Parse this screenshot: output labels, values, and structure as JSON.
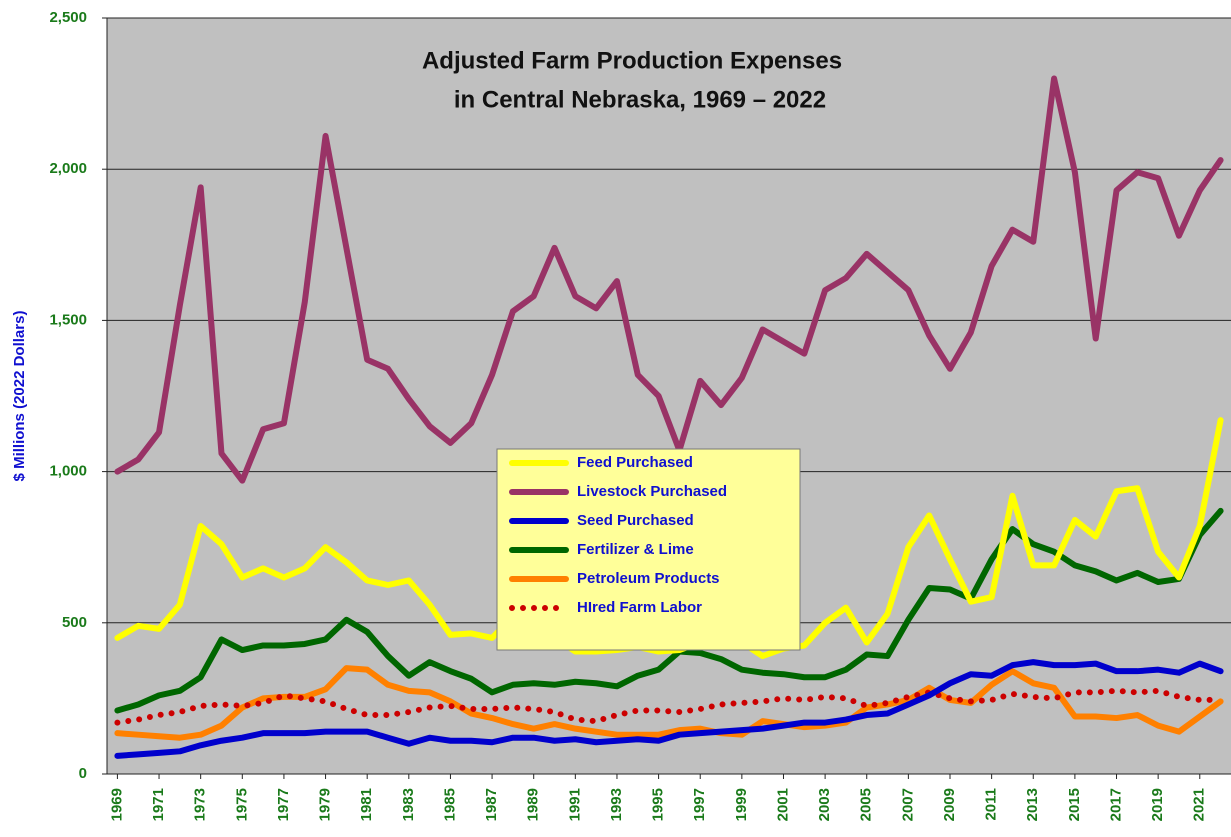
{
  "chart_data": {
    "type": "line",
    "title": [
      "Adjusted Farm Production Expenses",
      "in Central Nebraska, 1969 – 2022"
    ],
    "y_label": "$ Millions (2022 Dollars)",
    "x": [
      1969,
      1970,
      1971,
      1972,
      1973,
      1974,
      1975,
      1976,
      1977,
      1978,
      1979,
      1980,
      1981,
      1982,
      1983,
      1984,
      1985,
      1986,
      1987,
      1988,
      1989,
      1990,
      1991,
      1992,
      1993,
      1994,
      1995,
      1996,
      1997,
      1998,
      1999,
      2000,
      2001,
      2002,
      2003,
      2004,
      2005,
      2006,
      2007,
      2008,
      2009,
      2010,
      2011,
      2012,
      2013,
      2014,
      2015,
      2016,
      2017,
      2018,
      2019,
      2020,
      2021,
      2022
    ],
    "xlim": [
      1968.5,
      2022.5
    ],
    "xticks": [
      1969,
      1971,
      1973,
      1975,
      1977,
      1979,
      1981,
      1983,
      1985,
      1987,
      1989,
      1991,
      1993,
      1995,
      1997,
      1999,
      2001,
      2003,
      2005,
      2007,
      2009,
      2011,
      2013,
      2015,
      2017,
      2019,
      2021
    ],
    "ylim": [
      0,
      2500
    ],
    "yticks": [
      0,
      500,
      {
        "value": 1000,
        "label": "1,000"
      },
      {
        "value": 1500,
        "label": "1,500"
      },
      {
        "value": 2000,
        "label": "2,000"
      },
      {
        "value": 2500,
        "label": "2,500"
      }
    ],
    "grid": true,
    "series": [
      {
        "name": "Feed Purchased",
        "color": "#ffff00",
        "style": "solid",
        "values": [
          450,
          490,
          480,
          560,
          820,
          760,
          650,
          680,
          650,
          680,
          750,
          700,
          640,
          625,
          640,
          560,
          460,
          465,
          450,
          520,
          490,
          450,
          405,
          405,
          410,
          420,
          405,
          410,
          435,
          435,
          435,
          390,
          415,
          425,
          500,
          550,
          435,
          530,
          750,
          855,
          710,
          570,
          585,
          920,
          690,
          690,
          840,
          785,
          935,
          945,
          735,
          650,
          820,
          1170
        ]
      },
      {
        "name": "Livestock Purchased",
        "color": "#993366",
        "style": "solid",
        "values": [
          1000,
          1040,
          1130,
          1550,
          1940,
          1060,
          970,
          1140,
          1160,
          1560,
          2110,
          1740,
          1370,
          1340,
          1240,
          1150,
          1095,
          1160,
          1320,
          1530,
          1580,
          1740,
          1580,
          1540,
          1630,
          1320,
          1250,
          1070,
          1300,
          1220,
          1310,
          1470,
          1430,
          1390,
          1600,
          1640,
          1720,
          1660,
          1600,
          1450,
          1340,
          1460,
          1680,
          1800,
          1760,
          2300,
          1990,
          1440,
          1930,
          1990,
          1970,
          1780,
          1930,
          2030
        ]
      },
      {
        "name": "Seed Purchased",
        "color": "#0000cc",
        "style": "solid",
        "values": [
          60,
          65,
          70,
          75,
          95,
          110,
          120,
          135,
          135,
          135,
          140,
          140,
          140,
          120,
          100,
          120,
          110,
          110,
          105,
          120,
          120,
          110,
          115,
          105,
          110,
          115,
          110,
          130,
          135,
          140,
          145,
          150,
          160,
          170,
          170,
          180,
          195,
          200,
          230,
          260,
          300,
          330,
          325,
          360,
          370,
          360,
          360,
          365,
          340,
          340,
          345,
          335,
          365,
          340
        ]
      },
      {
        "name": "Fertilizer & Lime",
        "color": "#006600",
        "style": "solid",
        "values": [
          210,
          230,
          260,
          275,
          320,
          445,
          410,
          425,
          425,
          430,
          445,
          510,
          470,
          390,
          325,
          370,
          340,
          315,
          270,
          295,
          300,
          295,
          305,
          300,
          290,
          325,
          345,
          405,
          400,
          380,
          345,
          335,
          330,
          320,
          320,
          345,
          395,
          390,
          510,
          615,
          610,
          580,
          710,
          810,
          760,
          735,
          690,
          670,
          640,
          665,
          635,
          645,
          790,
          870
        ]
      },
      {
        "name": "Petroleum Products",
        "color": "#ff8000",
        "style": "solid",
        "values": [
          135,
          130,
          125,
          120,
          130,
          160,
          220,
          250,
          255,
          255,
          280,
          350,
          345,
          295,
          275,
          270,
          240,
          200,
          185,
          165,
          150,
          165,
          150,
          140,
          130,
          130,
          130,
          145,
          150,
          135,
          130,
          175,
          165,
          155,
          160,
          170,
          220,
          230,
          245,
          285,
          245,
          235,
          295,
          340,
          300,
          285,
          190,
          190,
          185,
          195,
          160,
          140,
          190,
          240
        ]
      },
      {
        "name": "HIred Farm Labor",
        "color": "#cc0000",
        "style": "dotted",
        "values": [
          170,
          180,
          195,
          205,
          225,
          230,
          225,
          235,
          260,
          250,
          240,
          215,
          195,
          195,
          205,
          220,
          225,
          215,
          215,
          220,
          215,
          205,
          180,
          175,
          195,
          210,
          210,
          205,
          215,
          230,
          235,
          240,
          250,
          245,
          255,
          250,
          225,
          235,
          255,
          270,
          250,
          240,
          245,
          265,
          255,
          250,
          270,
          270,
          275,
          270,
          275,
          255,
          245,
          245
        ]
      }
    ]
  }
}
